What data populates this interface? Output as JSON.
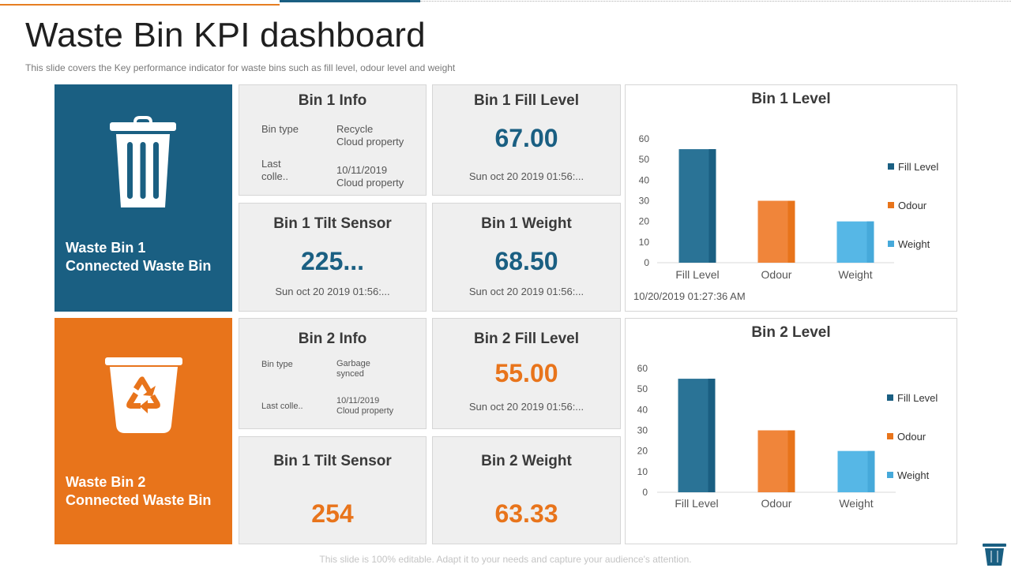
{
  "page": {
    "title": "Waste Bin KPI dashboard",
    "subtitle": "This slide covers the Key performance  indicator for waste bins such as fill level,  odour level and weight",
    "footer": "This slide is 100% editable. Adapt it to your needs and capture your audience's attention."
  },
  "colors": {
    "blue": "#1a5f82",
    "orange": "#e8741b",
    "light_blue": "#56b7e6",
    "dark_blue": "#2a7396"
  },
  "bin1": {
    "panel_line1": "Waste Bin 1",
    "panel_line2": "Connected Waste Bin",
    "panel_icon": "trash-can-icon",
    "info": {
      "title": "Bin 1 Info",
      "type_label": "Bin type",
      "type_value_1": "Recycle",
      "type_value_2": "Cloud property",
      "last_label_1": "Last",
      "last_label_2": "colle..",
      "last_value_1": "10/11/2019",
      "last_value_2": "Cloud property"
    },
    "fill": {
      "title": "Bin 1 Fill Level",
      "value": "67.00",
      "timestamp": "Sun oct 20 2019 01:56:..."
    },
    "tilt": {
      "title": "Bin 1 Tilt Sensor",
      "value": "225...",
      "timestamp": "Sun oct 20 2019 01:56:..."
    },
    "weight": {
      "title": "Bin 1 Weight",
      "value": "68.50",
      "timestamp": "Sun oct 20 2019 01:56:..."
    }
  },
  "bin2": {
    "panel_line1": "Waste Bin 2",
    "panel_line2": "Connected Waste Bin",
    "panel_icon": "recycle-bin-icon",
    "info": {
      "title": "Bin 2 Info",
      "type_label": "Bin type",
      "type_value_1": "Garbage",
      "type_value_2": "synced",
      "last_label": "Last colle..",
      "last_value_1": "10/11/2019",
      "last_value_2": "Cloud property"
    },
    "fill": {
      "title": "Bin 2 Fill Level",
      "value": "55.00",
      "timestamp": "Sun oct 20 2019 01:56:..."
    },
    "tilt": {
      "title": "Bin 1 Tilt Sensor",
      "value": "254"
    },
    "weight": {
      "title": "Bin 2 Weight",
      "value": "63.33"
    }
  },
  "chart_data": [
    {
      "type": "bar",
      "title": "Bin 1 Level",
      "categories": [
        "Fill Level",
        "Odour",
        "Weight"
      ],
      "values": [
        55,
        30,
        20
      ],
      "legend": [
        "Fill Level",
        "Odour",
        "Weight"
      ],
      "yticks": [
        "0",
        "10",
        "20",
        "30",
        "40",
        "50",
        "60"
      ],
      "ylim": [
        0,
        60
      ],
      "legend_position": "right",
      "timestamp": "10/20/2019  01:27:36 AM"
    },
    {
      "type": "bar",
      "title": "Bin 2 Level",
      "categories": [
        "Fill Level",
        "Odour",
        "Weight"
      ],
      "values": [
        55,
        30,
        20
      ],
      "legend": [
        "Fill Level",
        "Odour",
        "Weight"
      ],
      "yticks": [
        "0",
        "10",
        "20",
        "30",
        "40",
        "50",
        "60"
      ],
      "ylim": [
        0,
        60
      ],
      "legend_position": "right"
    }
  ]
}
